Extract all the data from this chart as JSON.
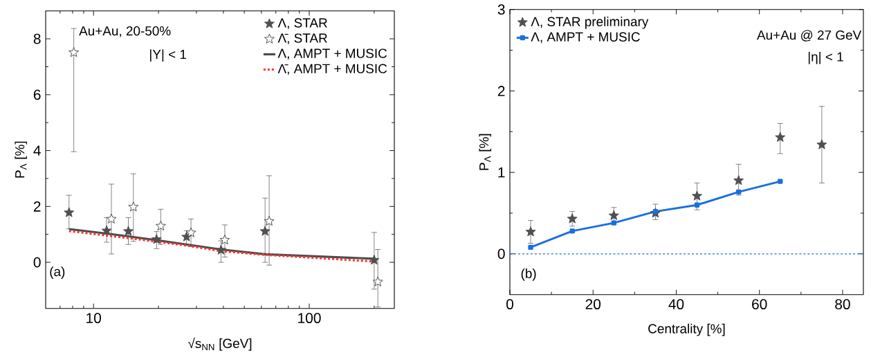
{
  "chart_data": [
    {
      "type": "scatter",
      "xlabel": "√s$_{NN}$ [GeV]",
      "ylabel": "P$_{Λ}$ [%]",
      "log": "x",
      "xlim": [
        6,
        248
      ],
      "ylim": [
        -1.65,
        9
      ],
      "xticks": [
        {
          "value": 7,
          "label": null
        },
        {
          "value": 8,
          "label": null
        },
        {
          "value": 9,
          "label": null
        },
        10,
        {
          "value": 20,
          "label": null
        },
        {
          "value": 30,
          "label": null
        },
        {
          "value": 40,
          "label": null
        },
        {
          "value": 50,
          "label": null
        },
        {
          "value": 60,
          "label": null
        },
        {
          "value": 70,
          "label": null
        },
        {
          "value": 80,
          "label": null
        },
        {
          "value": 90,
          "label": null
        },
        100,
        {
          "value": 200,
          "label": null
        }
      ],
      "yticks": [
        0,
        {
          "value": 1,
          "label": null
        },
        2,
        {
          "value": 3,
          "label": null
        },
        4,
        {
          "value": 5,
          "label": null
        },
        6,
        {
          "value": 7,
          "label": null
        },
        8
      ],
      "legend": "top right",
      "grid": false,
      "annotations": [
        "Au+Au, 20-50%",
        "|Y| < 1",
        "(a)"
      ],
      "series": [
        {
          "name": "Λ, STAR",
          "marker": "star",
          "color": "#505050",
          "x": [
            7.7,
            11.5,
            14.5,
            19.6,
            27,
            39,
            62.4,
            200
          ],
          "values": [
            1.78,
            1.13,
            1.11,
            0.82,
            0.91,
            0.44,
            1.11,
            0.08
          ],
          "errors": [
            [
              1.2,
              2.4
            ],
            [
              0.72,
              1.6
            ],
            [
              0.64,
              1.6
            ],
            [
              0.49,
              1.1
            ],
            [
              0.6,
              1.13
            ],
            [
              0,
              0.77
            ],
            [
              0,
              2.3
            ],
            [
              -0.96,
              1.07
            ]
          ]
        },
        {
          "name": "Λ̄, STAR",
          "marker": "star",
          "color": "#505050",
          "x": [
            8.1,
            12.1,
            15.3,
            20.5,
            28.3,
            40.6,
            65.2,
            208
          ],
          "values": [
            7.51,
            1.55,
            1.98,
            1.3,
            1.06,
            0.8,
            1.47,
            -0.7
          ],
          "errors": [
            [
              3.96,
              8.37
            ],
            [
              0.3,
              2.8
            ],
            [
              0.75,
              3.17
            ],
            [
              0.64,
              1.9
            ],
            [
              0.56,
              1.55
            ],
            [
              0.19,
              1.34
            ],
            [
              -0.1,
              3.1
            ],
            [
              -1.6,
              0.46
            ]
          ]
        },
        {
          "name": "Λ, AMPT + MUSIC",
          "type": "line",
          "line_style": "solid",
          "color": "#4d4d4d",
          "x": [
            7.7,
            11.5,
            14.5,
            19.6,
            27,
            39,
            62.4,
            200
          ],
          "values": [
            1.19,
            1.03,
            0.93,
            0.79,
            0.64,
            0.46,
            0.29,
            0.13
          ]
        },
        {
          "name": "Λ̄, AMPT + MUSIC",
          "type": "line",
          "line_style": "dashed",
          "color": "#ff3333",
          "x": [
            7.7,
            11.5,
            14.5,
            19.6,
            27,
            39,
            62.4,
            200
          ],
          "values": [
            1.12,
            0.96,
            0.87,
            0.74,
            0.6,
            0.4,
            0.27,
            0.03
          ]
        }
      ]
    },
    {
      "type": "scatter",
      "xlabel": "Centrality [%]",
      "ylabel": "P$_{Λ}$ [%]",
      "xlim": [
        0,
        85
      ],
      "ylim": [
        -0.5,
        3
      ],
      "xticks": [
        0,
        {
          "value": 10,
          "label": null
        },
        20,
        {
          "value": 30,
          "label": null
        },
        40,
        {
          "value": 50,
          "label": null
        },
        60,
        {
          "value": 70,
          "label": null
        },
        80
      ],
      "yticks": [
        0,
        {
          "value": 0.5,
          "label": null
        },
        1,
        {
          "value": 1.5,
          "label": null
        },
        2,
        {
          "value": 2.5,
          "label": null
        },
        3
      ],
      "legend": "top left",
      "grid": false,
      "annotations": [
        "Au+Au @ 27 GeV",
        "|η| < 1",
        "(b)"
      ],
      "ref_lines": [
        {
          "axis": "y",
          "value": 0,
          "color": "#1a6fdf",
          "line_style": "dashed"
        }
      ],
      "series": [
        {
          "name": "Λ,  STAR preliminary",
          "marker": "star",
          "color": "#505050",
          "x": [
            5,
            15,
            25,
            35,
            45,
            55,
            65,
            75
          ],
          "values": [
            0.27,
            0.43,
            0.47,
            0.5,
            0.71,
            0.9,
            1.43,
            1.34
          ],
          "errors": [
            [
              0.13,
              0.41
            ],
            [
              0.34,
              0.52
            ],
            [
              0.36,
              0.57
            ],
            [
              0.42,
              0.61
            ],
            [
              0.54,
              0.87
            ],
            [
              0.72,
              1.1
            ],
            [
              1.23,
              1.6
            ],
            [
              0.87,
              1.81
            ]
          ]
        },
        {
          "name": "Λ,  AMPT + MUSIC",
          "type": "line",
          "marker": "square",
          "line_style": "solid",
          "color": "#1a6fdf",
          "x": [
            5,
            15,
            25,
            35,
            45,
            55,
            65
          ],
          "values": [
            0.08,
            0.28,
            0.38,
            0.52,
            0.6,
            0.76,
            0.89
          ]
        }
      ]
    }
  ]
}
